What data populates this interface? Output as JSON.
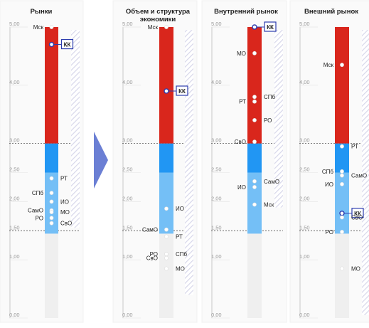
{
  "colors": {
    "red": "#d9261c",
    "blue": "#2196f3",
    "lightblue": "#74bff6",
    "gray": "#efefef",
    "hatch": "#d7d7ea",
    "marker": "#2c3cae",
    "arrow": "#6b7fd4"
  },
  "chart_data": {
    "type": "scatter",
    "ylim": [
      0,
      5
    ],
    "yticks": [
      "0,00",
      "1,00",
      "1,50",
      "2,00",
      "2,50",
      "3,00",
      "4,00",
      "5,00"
    ],
    "arrow_icon": "right-arrow",
    "panels": [
      {
        "title_lines": [
          "Рынки"
        ],
        "bands": [
          {
            "zone": "gray",
            "from": 0,
            "to": 1.45
          },
          {
            "zone": "lightblue",
            "from": 1.45,
            "to": 2.5
          },
          {
            "zone": "blue",
            "from": 2.5,
            "to": 3.0
          },
          {
            "zone": "red",
            "from": 3.0,
            "to": 5.0
          }
        ],
        "hatch": {
          "from": 1.55,
          "to": 4.95
        },
        "points": [
          {
            "label": "Мск",
            "y": 5.0,
            "side": "left"
          },
          {
            "label": "КК",
            "y": 4.7,
            "side": "left",
            "highlight": true
          },
          {
            "label": "РТ",
            "y": 2.4,
            "side": "right"
          },
          {
            "label": "СПб",
            "y": 2.15,
            "side": "left"
          },
          {
            "label": "ИО",
            "y": 2.0,
            "side": "right"
          },
          {
            "label": "СамО",
            "y": 1.85,
            "side": "left"
          },
          {
            "label": "МО",
            "y": 1.82,
            "side": "right"
          },
          {
            "label": "РО",
            "y": 1.72,
            "side": "left"
          },
          {
            "label": "СвО",
            "y": 1.63,
            "side": "right"
          }
        ]
      },
      {
        "title_lines": [
          "Объем и структура",
          "экономики"
        ],
        "bands": [
          {
            "zone": "gray",
            "from": 0,
            "to": 1.45
          },
          {
            "zone": "lightblue",
            "from": 1.45,
            "to": 2.5
          },
          {
            "zone": "blue",
            "from": 2.5,
            "to": 3.0
          },
          {
            "zone": "red",
            "from": 3.0,
            "to": 5.0
          }
        ],
        "hatch": {
          "from": 0.4,
          "to": 4.95
        },
        "points": [
          {
            "label": "Мск",
            "y": 5.0,
            "side": "left"
          },
          {
            "label": "КК",
            "y": 3.9,
            "side": "right",
            "highlight": true
          },
          {
            "label": "ИО",
            "y": 1.88,
            "side": "right"
          },
          {
            "label": "СамО",
            "y": 1.52,
            "side": "left"
          },
          {
            "label": "РТ",
            "y": 1.4,
            "side": "right"
          },
          {
            "label": "СПб",
            "y": 1.1,
            "side": "right"
          },
          {
            "label": "РО",
            "y": 1.1,
            "side": "left"
          },
          {
            "label": "СвО",
            "y": 1.03,
            "side": "left"
          },
          {
            "label": "МО",
            "y": 0.85,
            "side": "right"
          }
        ]
      },
      {
        "title_lines": [
          "Внутренний рынок"
        ],
        "bands": [
          {
            "zone": "gray",
            "from": 0,
            "to": 1.45
          },
          {
            "zone": "lightblue",
            "from": 1.45,
            "to": 2.5
          },
          {
            "zone": "blue",
            "from": 2.5,
            "to": 3.0
          },
          {
            "zone": "red",
            "from": 3.0,
            "to": 5.0
          }
        ],
        "hatch": {
          "from": 1.9,
          "to": 4.95
        },
        "points": [
          {
            "label": "КК",
            "y": 5.0,
            "side": "right",
            "highlight": true
          },
          {
            "label": "МО",
            "y": 4.55,
            "side": "left"
          },
          {
            "label": "СПб",
            "y": 3.8,
            "side": "right"
          },
          {
            "label": "РТ",
            "y": 3.72,
            "side": "left"
          },
          {
            "label": "РО",
            "y": 3.4,
            "side": "right"
          },
          {
            "label": "СвО",
            "y": 3.03,
            "side": "left"
          },
          {
            "label": "СамО",
            "y": 2.35,
            "side": "right"
          },
          {
            "label": "ИО",
            "y": 2.25,
            "side": "left"
          },
          {
            "label": "Мск",
            "y": 1.95,
            "side": "right"
          }
        ]
      },
      {
        "title_lines": [
          "Внешний рынок"
        ],
        "bands": [
          {
            "zone": "gray",
            "from": 0,
            "to": 1.45
          },
          {
            "zone": "lightblue",
            "from": 1.45,
            "to": 2.5
          },
          {
            "zone": "blue",
            "from": 2.5,
            "to": 3.0
          },
          {
            "zone": "red",
            "from": 3.0,
            "to": 5.0
          }
        ],
        "hatch": {
          "from": 0.05,
          "to": 4.95
        },
        "points": [
          {
            "label": "Мск",
            "y": 4.35,
            "side": "left"
          },
          {
            "label": "РТ",
            "y": 2.95,
            "side": "right"
          },
          {
            "label": "СПб",
            "y": 2.52,
            "side": "left"
          },
          {
            "label": "СамО",
            "y": 2.45,
            "side": "right"
          },
          {
            "label": "ИО",
            "y": 2.3,
            "side": "left"
          },
          {
            "label": "КК",
            "y": 1.8,
            "side": "right",
            "highlight": true
          },
          {
            "label": "СвО",
            "y": 1.73,
            "side": "right"
          },
          {
            "label": "РО",
            "y": 1.48,
            "side": "left"
          },
          {
            "label": "МО",
            "y": 0.85,
            "side": "right"
          }
        ]
      }
    ]
  }
}
